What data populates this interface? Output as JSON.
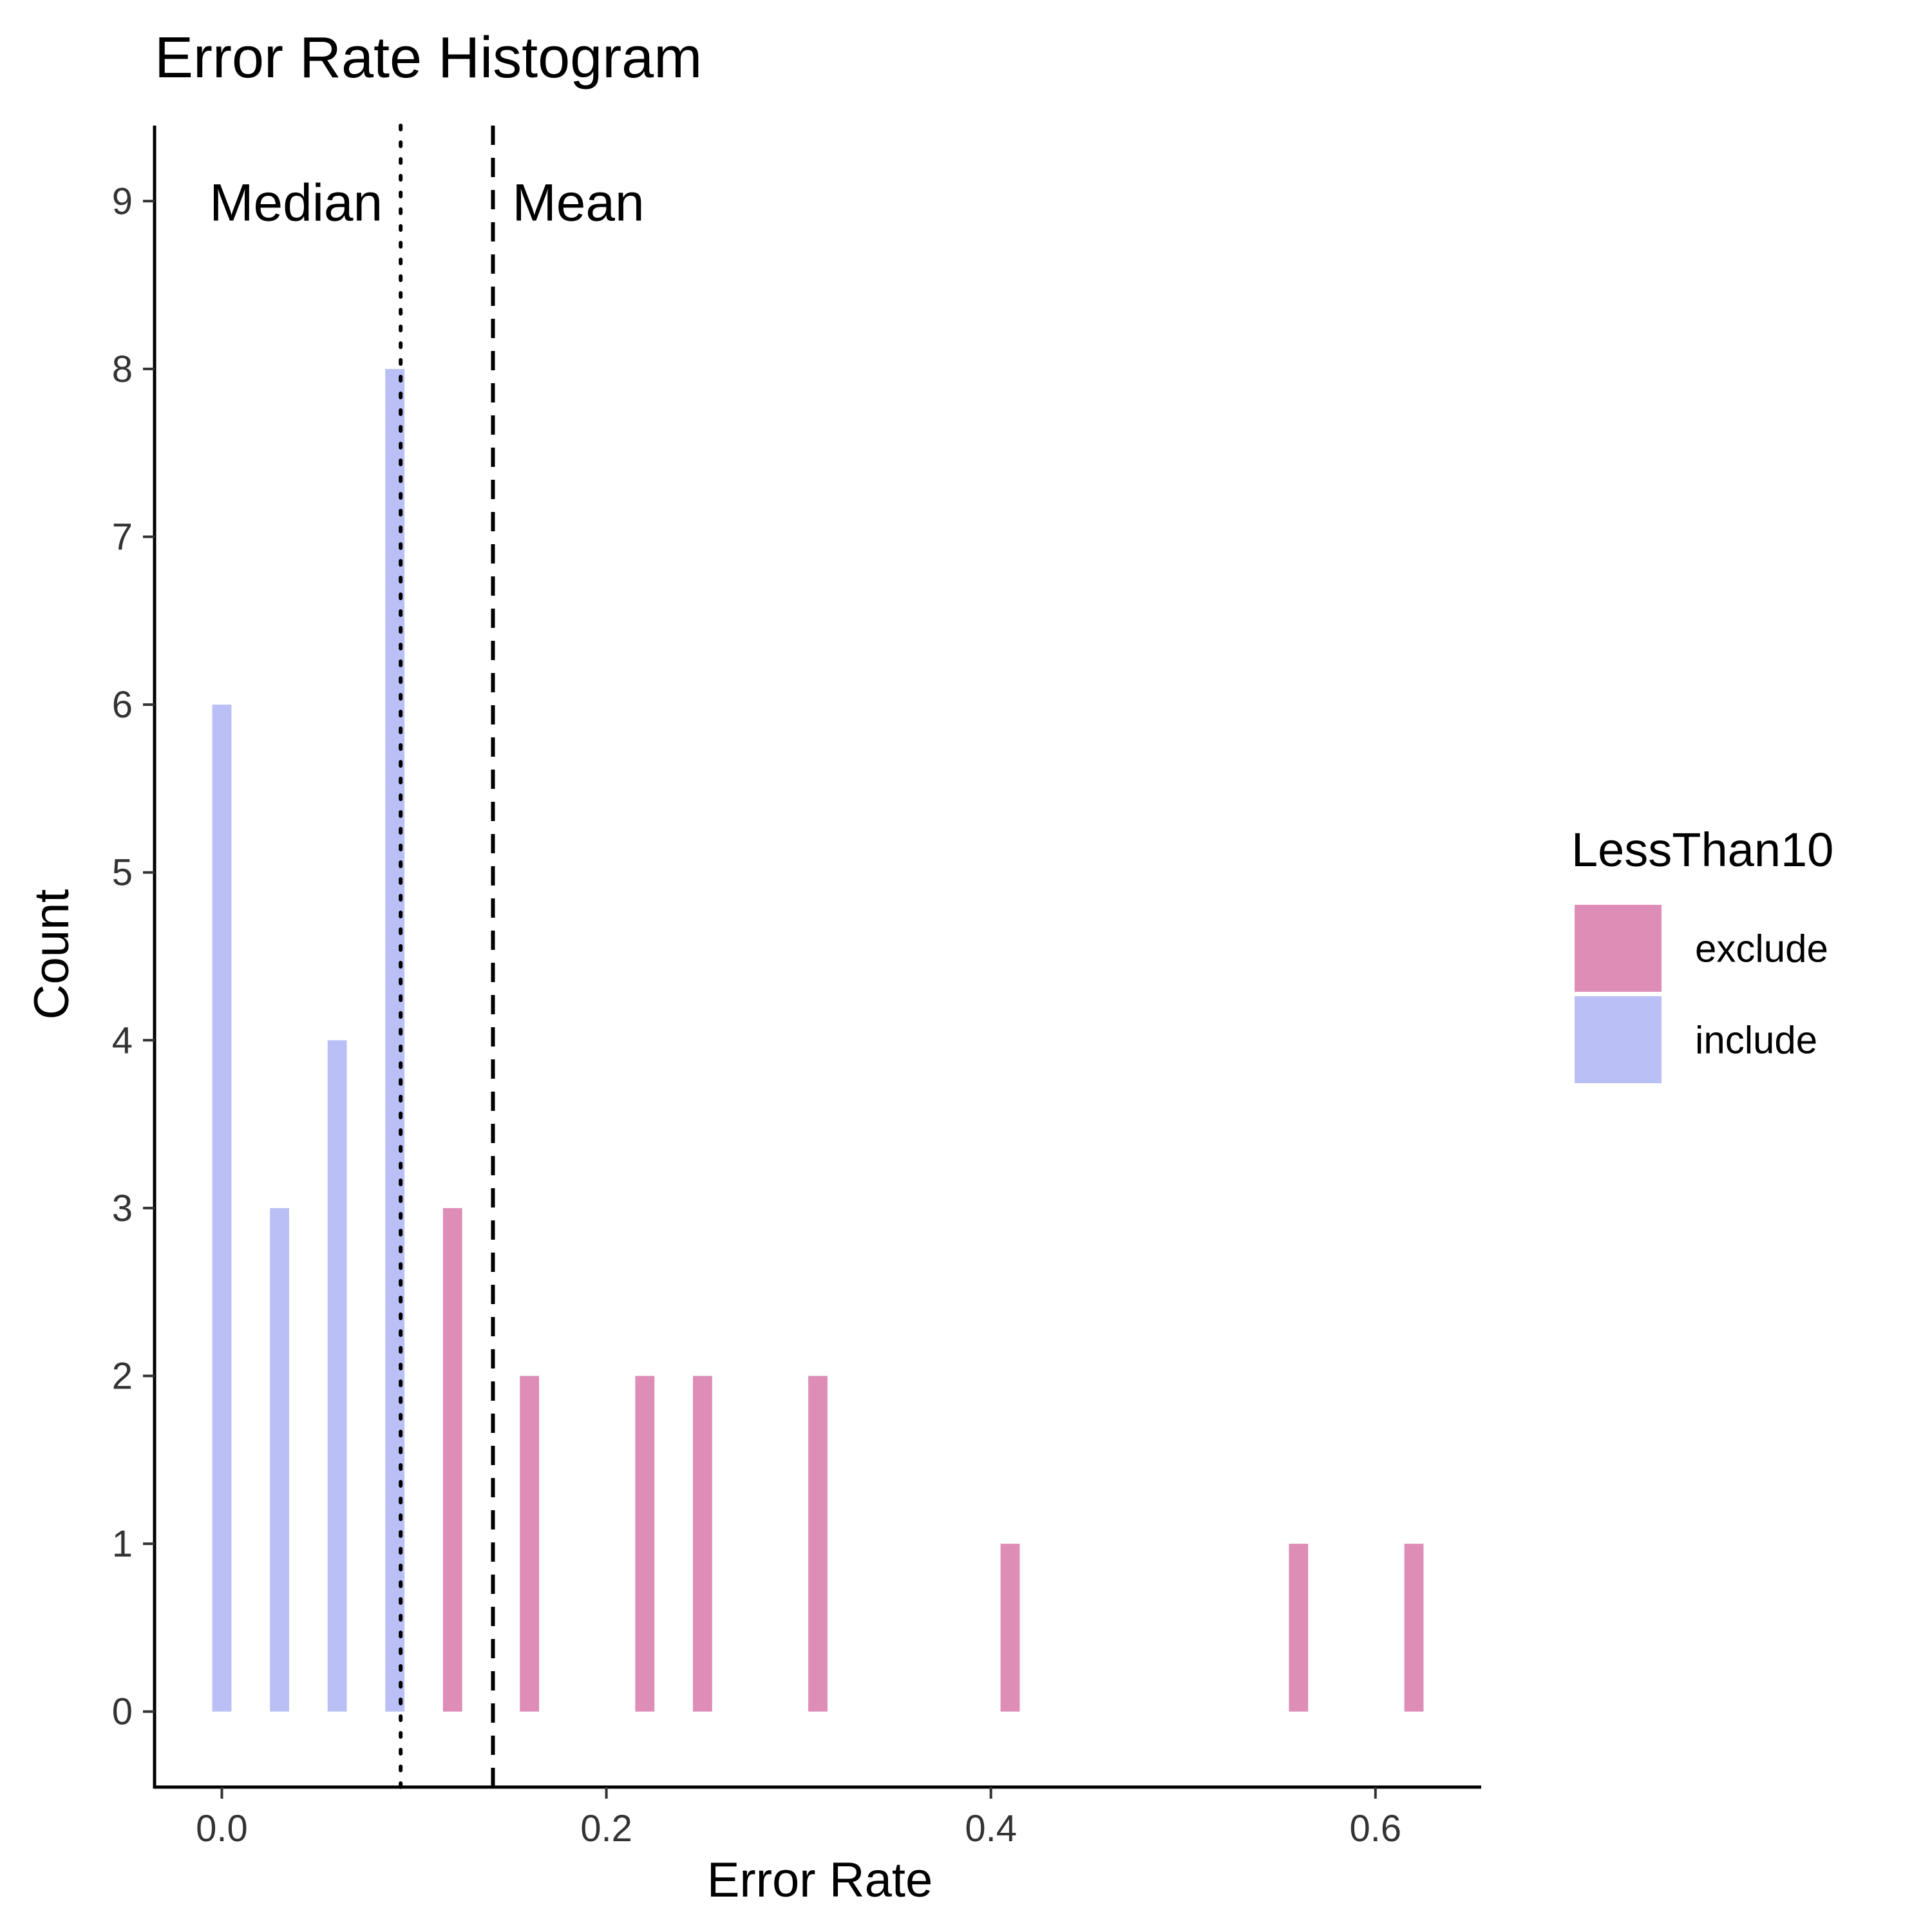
{
  "chart_data": {
    "type": "bar",
    "title": "Error Rate Histogram",
    "xlabel": "Error Rate",
    "ylabel": "Count",
    "xlim": [
      -0.035,
      0.655
    ],
    "ylim": [
      -0.45,
      9.45
    ],
    "xticks": [
      {
        "value": 0.0,
        "label": "0.0"
      },
      {
        "value": 0.2,
        "label": "0.2"
      },
      {
        "value": 0.4,
        "label": "0.4"
      },
      {
        "value": 0.6,
        "label": "0.6"
      }
    ],
    "yticks": [
      {
        "value": 0,
        "label": "0"
      },
      {
        "value": 1,
        "label": "1"
      },
      {
        "value": 2,
        "label": "2"
      },
      {
        "value": 3,
        "label": "3"
      },
      {
        "value": 4,
        "label": "4"
      },
      {
        "value": 5,
        "label": "5"
      },
      {
        "value": 6,
        "label": "6"
      },
      {
        "value": 7,
        "label": "7"
      },
      {
        "value": 8,
        "label": "8"
      },
      {
        "value": 9,
        "label": "9"
      }
    ],
    "bin_width": 0.01,
    "grid": false,
    "legend": {
      "title": "LessThan10",
      "position": "right",
      "entries": [
        {
          "label": "exclude",
          "color": "#DE8DB7"
        },
        {
          "label": "include",
          "color": "#BAC0F5"
        }
      ]
    },
    "series": [
      {
        "name": "include",
        "color": "#BAC0F5",
        "bars": [
          {
            "x": 0.0,
            "count": 6
          },
          {
            "x": 0.03,
            "count": 3
          },
          {
            "x": 0.06,
            "count": 4
          },
          {
            "x": 0.09,
            "count": 8
          }
        ]
      },
      {
        "name": "exclude",
        "color": "#DE8DB7",
        "bars": [
          {
            "x": 0.12,
            "count": 3
          },
          {
            "x": 0.16,
            "count": 2
          },
          {
            "x": 0.22,
            "count": 2
          },
          {
            "x": 0.25,
            "count": 2
          },
          {
            "x": 0.31,
            "count": 2
          },
          {
            "x": 0.41,
            "count": 1
          },
          {
            "x": 0.56,
            "count": 1
          },
          {
            "x": 0.62,
            "count": 1
          }
        ]
      }
    ],
    "reference_lines": [
      {
        "label": "Median",
        "x": 0.093,
        "style": "dotted",
        "label_side": "left"
      },
      {
        "label": "Mean",
        "x": 0.141,
        "style": "dashed",
        "label_side": "right"
      }
    ],
    "annotation_y": 9
  }
}
